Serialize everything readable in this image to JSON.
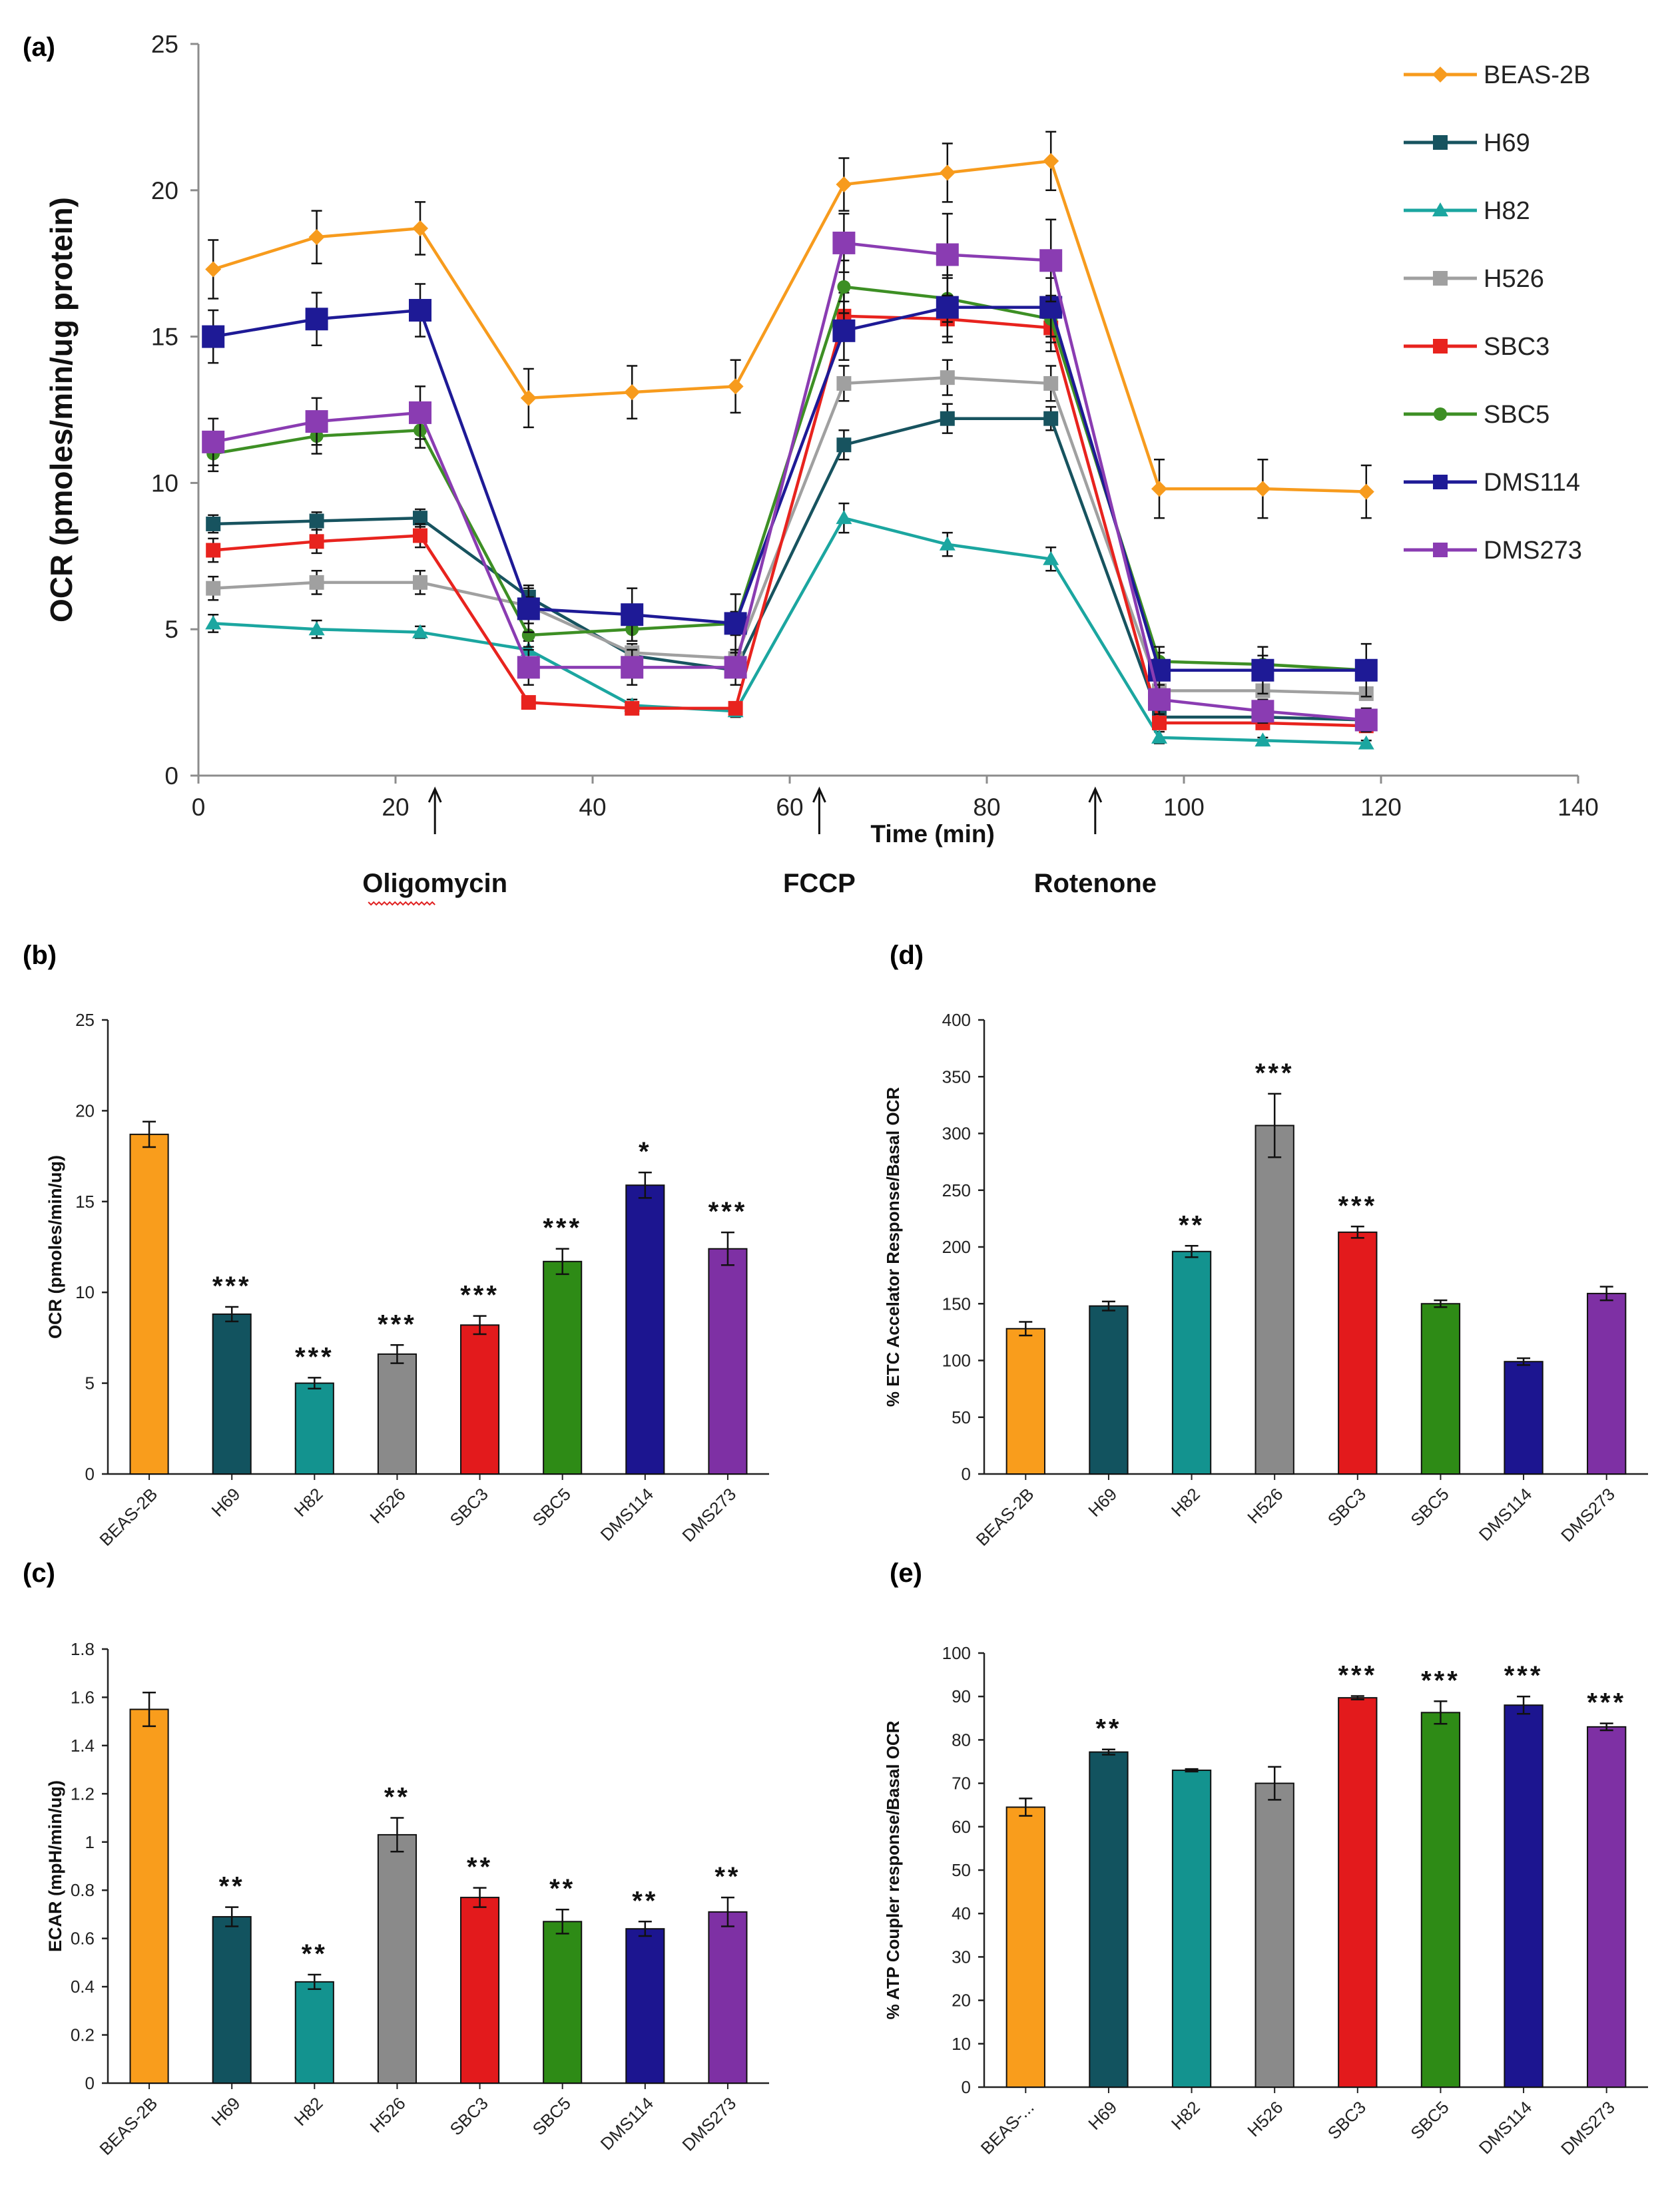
{
  "chart_data": [
    {
      "panel": "(a)",
      "type": "line",
      "xlabel": "Time (min)",
      "ylabel": "OCR (pmoles/min/ug protein)",
      "xlim": [
        0,
        140
      ],
      "ylim": [
        0,
        25
      ],
      "xticks": [
        "0",
        "20",
        "40",
        "60",
        "80",
        "100",
        "120",
        "140"
      ],
      "yticks": [
        "0",
        "5",
        "10",
        "15",
        "20",
        "25"
      ],
      "x": [
        1.5,
        12,
        22.5,
        33.5,
        44,
        54.5,
        65.5,
        76,
        86.5,
        97.5,
        108,
        118.5
      ],
      "series": [
        {
          "name": "BEAS-2B",
          "color": "#F79B1D",
          "marker": "diamond",
          "values": [
            17.3,
            18.4,
            18.7,
            12.9,
            13.1,
            13.3,
            20.2,
            20.6,
            21.0,
            9.8,
            9.8,
            9.7
          ],
          "errors": [
            1.0,
            0.9,
            0.9,
            1.0,
            0.9,
            0.9,
            0.9,
            1.0,
            1.0,
            1.0,
            1.0,
            0.9
          ]
        },
        {
          "name": "H69",
          "color": "#17535F",
          "marker": "square-small",
          "values": [
            8.6,
            8.7,
            8.8,
            6.1,
            4.1,
            3.6,
            11.3,
            12.2,
            12.2,
            2.0,
            2.0,
            1.9
          ],
          "errors": [
            0.3,
            0.3,
            0.3,
            0.3,
            0.2,
            0.2,
            0.5,
            0.5,
            0.4,
            0.2,
            0.2,
            0.2
          ]
        },
        {
          "name": "H82",
          "color": "#1BA6A0",
          "marker": "triangle",
          "values": [
            5.2,
            5.0,
            4.9,
            4.3,
            2.4,
            2.2,
            8.8,
            7.9,
            7.4,
            1.3,
            1.2,
            1.1
          ],
          "errors": [
            0.3,
            0.3,
            0.2,
            0.3,
            0.2,
            0.2,
            0.5,
            0.4,
            0.4,
            0.2,
            0.1,
            0.1
          ]
        },
        {
          "name": "H526",
          "color": "#A0A0A0",
          "marker": "square-small",
          "values": [
            6.4,
            6.6,
            6.6,
            5.8,
            4.2,
            4.0,
            13.4,
            13.6,
            13.4,
            2.9,
            2.9,
            2.8
          ],
          "errors": [
            0.4,
            0.4,
            0.4,
            0.3,
            0.3,
            0.3,
            0.6,
            0.6,
            0.6,
            0.2,
            0.2,
            0.2
          ]
        },
        {
          "name": "SBC3",
          "color": "#E8231E",
          "marker": "square-small",
          "values": [
            7.7,
            8.0,
            8.2,
            2.5,
            2.3,
            2.3,
            15.7,
            15.6,
            15.3,
            1.8,
            1.8,
            1.7
          ],
          "errors": [
            0.4,
            0.4,
            0.4,
            0.2,
            0.2,
            0.2,
            0.8,
            0.8,
            0.8,
            0.2,
            0.2,
            0.2
          ]
        },
        {
          "name": "SBC5",
          "color": "#3D8F24",
          "marker": "circle",
          "values": [
            11.0,
            11.6,
            11.8,
            4.8,
            5.0,
            5.2,
            16.7,
            16.3,
            15.6,
            3.9,
            3.8,
            3.6
          ],
          "errors": [
            0.6,
            0.6,
            0.6,
            0.4,
            0.4,
            0.4,
            0.9,
            0.8,
            0.8,
            0.3,
            0.3,
            0.3
          ]
        },
        {
          "name": "DMS114",
          "color": "#1E1A96",
          "marker": "square",
          "values": [
            15.0,
            15.6,
            15.9,
            5.7,
            5.5,
            5.2,
            15.2,
            16.0,
            16.0,
            3.6,
            3.6,
            3.6
          ],
          "errors": [
            0.9,
            0.9,
            0.9,
            0.8,
            0.9,
            1.0,
            1.0,
            1.0,
            1.0,
            0.8,
            0.8,
            0.9
          ]
        },
        {
          "name": "DMS273",
          "color": "#8A3CB2",
          "marker": "square",
          "values": [
            11.4,
            12.1,
            12.4,
            3.7,
            3.7,
            3.7,
            18.2,
            17.8,
            17.6,
            2.6,
            2.2,
            1.9
          ],
          "errors": [
            0.8,
            0.8,
            0.9,
            0.6,
            0.6,
            0.6,
            1.0,
            1.4,
            1.4,
            0.5,
            0.4,
            0.4
          ]
        }
      ],
      "annotations": [
        {
          "text": "Oligomycin",
          "x": 24
        },
        {
          "text": "FCCP",
          "x": 63
        },
        {
          "text": "Rotenone",
          "x": 91
        }
      ]
    },
    {
      "panel": "(b)",
      "type": "bar",
      "ylabel": "OCR (pmoles/min/ug)",
      "ylim": [
        0,
        25
      ],
      "yticks": [
        "0",
        "5",
        "10",
        "15",
        "20",
        "25"
      ],
      "categories": [
        "BEAS-2B",
        "H69",
        "H82",
        "H526",
        "SBC3",
        "SBC5",
        "DMS114",
        "DMS273"
      ],
      "values": [
        18.7,
        8.8,
        5.0,
        6.6,
        8.2,
        11.7,
        15.9,
        12.4
      ],
      "errors": [
        0.7,
        0.4,
        0.3,
        0.5,
        0.5,
        0.7,
        0.7,
        0.9
      ],
      "significance": [
        "",
        "***",
        "***",
        "***",
        "***",
        "***",
        "*",
        "***"
      ]
    },
    {
      "panel": "(c)",
      "type": "bar",
      "ylabel": "ECAR (mpH/min/ug)",
      "ylim": [
        0,
        1.8
      ],
      "yticks": [
        "0",
        "0.2",
        "0.4",
        "0.6",
        "0.8",
        "1",
        "1.2",
        "1.4",
        "1.6",
        "1.8"
      ],
      "categories": [
        "BEAS-2B",
        "H69",
        "H82",
        "H526",
        "SBC3",
        "SBC5",
        "DMS114",
        "DMS273"
      ],
      "values": [
        1.55,
        0.69,
        0.42,
        1.03,
        0.77,
        0.67,
        0.64,
        0.71
      ],
      "errors": [
        0.07,
        0.04,
        0.03,
        0.07,
        0.04,
        0.05,
        0.03,
        0.06
      ],
      "significance": [
        "",
        "**",
        "**",
        "**",
        "**",
        "**",
        "**",
        "**"
      ]
    },
    {
      "panel": "(d)",
      "type": "bar",
      "ylabel": "% ETC Accelator Response/Basal OCR",
      "ylim": [
        0,
        400
      ],
      "yticks": [
        "0",
        "50",
        "100",
        "150",
        "200",
        "250",
        "300",
        "350",
        "400"
      ],
      "categories": [
        "BEAS-2B",
        "H69",
        "H82",
        "H526",
        "SBC3",
        "SBC5",
        "DMS114",
        "DMS273"
      ],
      "values": [
        128,
        148,
        196,
        307,
        213,
        150,
        99,
        159
      ],
      "errors": [
        6,
        4,
        5,
        28,
        5,
        3,
        3,
        6
      ],
      "significance": [
        "",
        "",
        "**",
        "***",
        "***",
        "",
        "",
        ""
      ]
    },
    {
      "panel": "(e)",
      "type": "bar",
      "ylabel": "% ATP Coupler response/Basal OCR",
      "ylim": [
        0,
        100
      ],
      "yticks": [
        "0",
        "10",
        "20",
        "30",
        "40",
        "50",
        "60",
        "70",
        "80",
        "90",
        "100"
      ],
      "categories": [
        "BEAS-...",
        "H69",
        "H82",
        "H526",
        "SBC3",
        "SBC5",
        "DMS114",
        "DMS273"
      ],
      "values": [
        64.5,
        77.2,
        73.0,
        70.0,
        89.7,
        86.3,
        88.0,
        83.0
      ],
      "errors": [
        2.0,
        0.6,
        0.3,
        3.8,
        0.4,
        2.6,
        2.0,
        0.8
      ],
      "significance": [
        "",
        "**",
        "",
        "",
        "***",
        "***",
        "***",
        "***"
      ]
    }
  ],
  "bar_colors": [
    "#F99D1C",
    "#12535F",
    "#13938F",
    "#8A8A8A",
    "#E31A1C",
    "#2E8B16",
    "#1C1590",
    "#7E30A4"
  ]
}
